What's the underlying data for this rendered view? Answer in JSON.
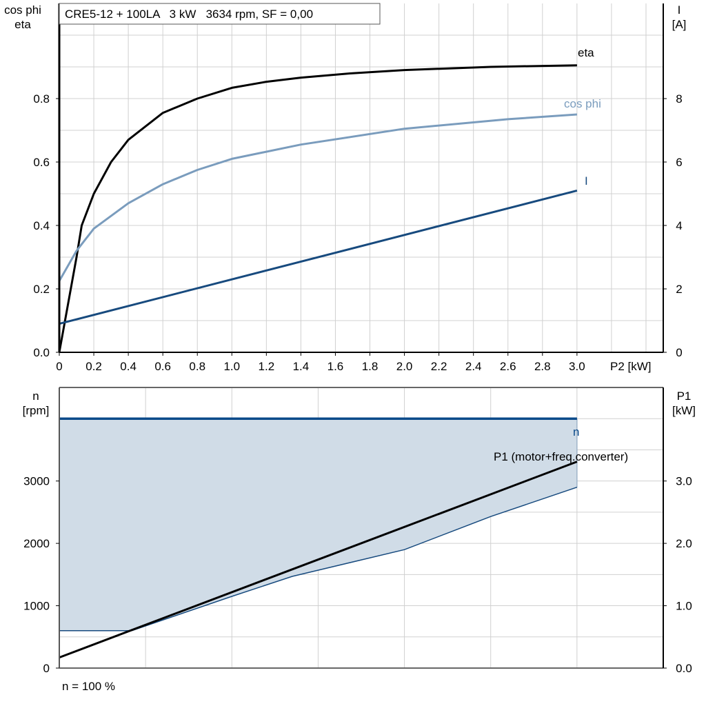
{
  "chart_data": [
    {
      "type": "line",
      "title": "CRE5-12 + 100LA   3 kW   3634 rpm, SF = 0,00",
      "xlabel": "P2 [kW]",
      "ylabel_left": [
        "cos phi",
        "eta"
      ],
      "ylabel_right": [
        "I",
        "[A]"
      ],
      "xlim": [
        0,
        3.5
      ],
      "ylim_left": [
        0,
        1.1
      ],
      "ylim_right": [
        0,
        11
      ],
      "x_ticks": [
        "0",
        "0.2",
        "0.4",
        "0.6",
        "0.8",
        "1.0",
        "1.2",
        "1.4",
        "1.6",
        "1.8",
        "2.0",
        "2.2",
        "2.4",
        "2.6",
        "2.8",
        "3.0"
      ],
      "y_left_ticks": [
        "0.0",
        "0.2",
        "0.4",
        "0.6",
        "0.8"
      ],
      "y_right_ticks": [
        "0",
        "2",
        "4",
        "6",
        "8"
      ],
      "grid": true,
      "series": [
        {
          "name": "eta",
          "axis": "left",
          "color": "#000000",
          "points": [
            [
              0,
              0
            ],
            [
              0.05,
              0.15
            ],
            [
              0.1,
              0.3
            ],
            [
              0.13,
              0.4
            ],
            [
              0.2,
              0.5
            ],
            [
              0.3,
              0.6
            ],
            [
              0.4,
              0.67
            ],
            [
              0.6,
              0.755
            ],
            [
              0.8,
              0.8
            ],
            [
              1.0,
              0.834
            ],
            [
              1.2,
              0.853
            ],
            [
              1.4,
              0.866
            ],
            [
              1.7,
              0.88
            ],
            [
              2.0,
              0.89
            ],
            [
              2.5,
              0.9
            ],
            [
              3.0,
              0.905
            ]
          ]
        },
        {
          "name": "cos phi",
          "axis": "left",
          "color": "#7a9cbd",
          "points": [
            [
              0,
              0.225
            ],
            [
              0.1,
              0.32
            ],
            [
              0.2,
              0.39
            ],
            [
              0.4,
              0.47
            ],
            [
              0.6,
              0.53
            ],
            [
              0.8,
              0.575
            ],
            [
              1.0,
              0.61
            ],
            [
              1.4,
              0.655
            ],
            [
              2.0,
              0.705
            ],
            [
              2.6,
              0.735
            ],
            [
              3.0,
              0.75
            ]
          ]
        },
        {
          "name": "I",
          "axis": "right",
          "color": "#174a7e",
          "points": [
            [
              0,
              0.9
            ],
            [
              3.0,
              5.1
            ]
          ]
        }
      ]
    },
    {
      "type": "area",
      "xlim": [
        0,
        3.5
      ],
      "ylabel_left": [
        "n",
        "[rpm]"
      ],
      "ylabel_right": [
        "P1",
        "[kW]"
      ],
      "ylim_left": [
        0,
        4500
      ],
      "ylim_right": [
        0,
        4.5
      ],
      "y_left_ticks": [
        "0",
        "1000",
        "2000",
        "3000"
      ],
      "y_right_ticks": [
        "0.0",
        "1.0",
        "2.0",
        "3.0"
      ],
      "grid": true,
      "footnote": "n = 100 %",
      "fill_color": "#d0dce7",
      "series": [
        {
          "name": "n",
          "axis": "left",
          "color": "#0b4a8a",
          "points": [
            [
              0,
              4000
            ],
            [
              3.0,
              4000
            ]
          ]
        },
        {
          "axis": "left",
          "color": "#174a7e",
          "points": [
            [
              0,
              600
            ],
            [
              0.42,
              600
            ],
            [
              1.0,
              1150
            ],
            [
              1.35,
              1470
            ],
            [
              2.0,
              1900
            ],
            [
              2.5,
              2430
            ],
            [
              3.0,
              2900
            ]
          ]
        },
        {
          "name": "P1 (motor+freq.converter)",
          "axis": "right",
          "color": "#000000",
          "points": [
            [
              0,
              0.17
            ],
            [
              3.0,
              3.31
            ]
          ]
        }
      ]
    }
  ]
}
